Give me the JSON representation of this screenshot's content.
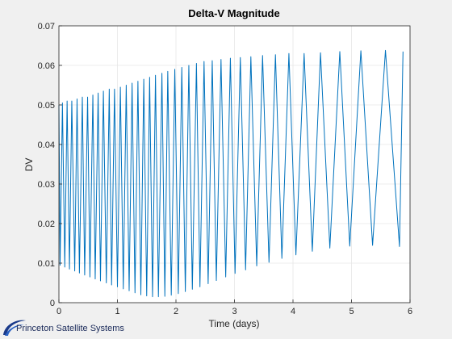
{
  "chart_data": {
    "type": "line",
    "title": "Delta-V Magnitude",
    "xlabel": "Time (days)",
    "ylabel": "DV",
    "xlim": [
      0,
      6
    ],
    "ylim": [
      0,
      0.07
    ],
    "xticks": [
      "0",
      "1",
      "2",
      "3",
      "4",
      "5",
      "6"
    ],
    "yticks": [
      "0",
      "0.01",
      "0.02",
      "0.03",
      "0.04",
      "0.05",
      "0.06",
      "0.07"
    ],
    "grid": true,
    "series": [
      {
        "color": "#0072bd",
        "x": [
          0,
          0.02,
          0.06,
          0.1,
          0.14,
          0.18,
          0.22,
          0.27,
          0.31,
          0.35,
          0.4,
          0.44,
          0.49,
          0.53,
          0.58,
          0.62,
          0.67,
          0.71,
          0.76,
          0.81,
          0.86,
          0.9,
          0.95,
          1.0,
          1.05,
          1.1,
          1.15,
          1.2,
          1.25,
          1.3,
          1.35,
          1.4,
          1.45,
          1.5,
          1.55,
          1.6,
          1.65,
          1.7,
          1.76,
          1.81,
          1.86,
          1.92,
          1.98,
          2.04,
          2.1,
          2.16,
          2.22,
          2.28,
          2.35,
          2.41,
          2.48,
          2.55,
          2.62,
          2.69,
          2.77,
          2.85,
          2.93,
          3.01,
          3.1,
          3.19,
          3.28,
          3.38,
          3.48,
          3.59,
          3.7,
          3.81,
          3.93,
          4.05,
          4.19,
          4.33,
          4.47,
          4.63,
          4.8,
          4.97,
          5.16,
          5.36,
          5.58,
          5.82,
          5.88
        ],
        "values": [
          0.05,
          0.0095,
          0.0505,
          0.009,
          0.051,
          0.0085,
          0.051,
          0.008,
          0.0515,
          0.0075,
          0.052,
          0.007,
          0.052,
          0.0065,
          0.0525,
          0.006,
          0.053,
          0.0055,
          0.0535,
          0.005,
          0.054,
          0.0045,
          0.054,
          0.004,
          0.0545,
          0.0035,
          0.055,
          0.003,
          0.0555,
          0.0025,
          0.056,
          0.002,
          0.0565,
          0.0017,
          0.057,
          0.0015,
          0.0575,
          0.0015,
          0.058,
          0.0016,
          0.0585,
          0.0019,
          0.059,
          0.0023,
          0.0595,
          0.0028,
          0.06,
          0.0034,
          0.0605,
          0.004,
          0.061,
          0.0048,
          0.0612,
          0.0056,
          0.0615,
          0.0065,
          0.0618,
          0.0074,
          0.062,
          0.0083,
          0.0622,
          0.0093,
          0.0625,
          0.0102,
          0.0627,
          0.0112,
          0.063,
          0.0121,
          0.063,
          0.013,
          0.0632,
          0.0138,
          0.0635,
          0.0143,
          0.0637,
          0.0145,
          0.0638,
          0.0142,
          0.0635
        ]
      }
    ]
  },
  "logo": {
    "text": "Princeton Satellite Systems"
  }
}
